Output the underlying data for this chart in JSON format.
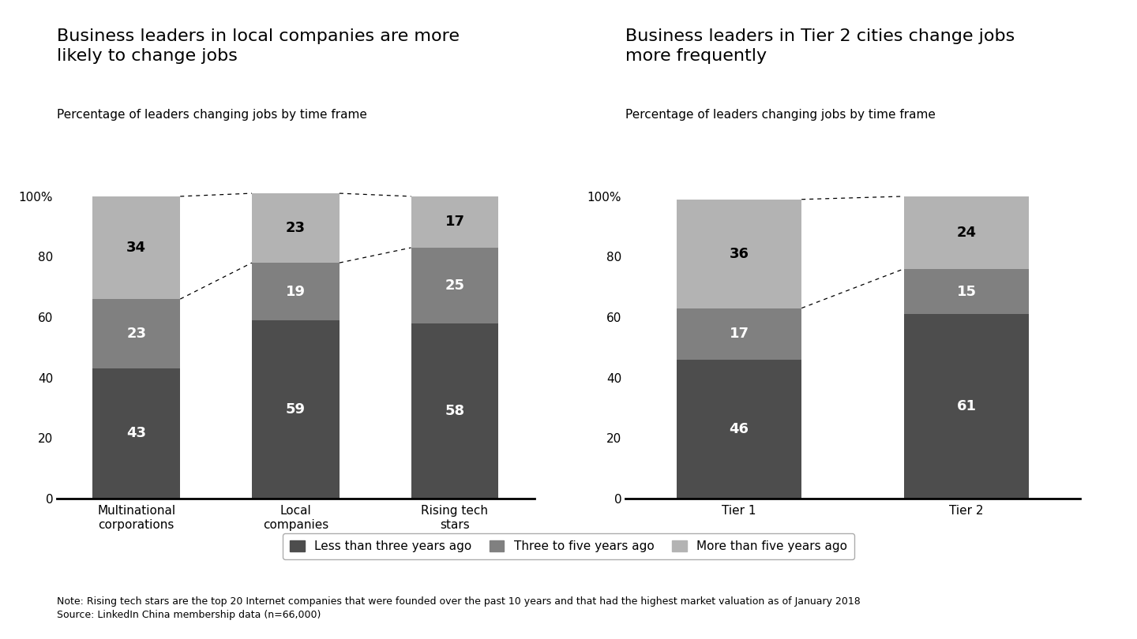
{
  "chart1": {
    "title": "Business leaders in local companies are more\nlikely to change jobs",
    "subtitle": "Percentage of leaders changing jobs by time frame",
    "categories": [
      "Multinational\ncorporations",
      "Local\ncompanies",
      "Rising tech\nstars"
    ],
    "less_than_3": [
      43,
      59,
      58
    ],
    "three_to_5": [
      23,
      19,
      25
    ],
    "more_than_5": [
      34,
      23,
      17
    ]
  },
  "chart2": {
    "title": "Business leaders in Tier 2 cities change jobs\nmore frequently",
    "subtitle": "Percentage of leaders changing jobs by time frame",
    "categories": [
      "Tier 1",
      "Tier 2"
    ],
    "less_than_3": [
      46,
      61
    ],
    "three_to_5": [
      17,
      15
    ],
    "more_than_5": [
      36,
      24
    ]
  },
  "legend_labels": [
    "Less than three years ago",
    "Three to five years ago",
    "More than five years ago"
  ],
  "colors": {
    "less_than_3": "#4d4d4d",
    "three_to_5": "#808080",
    "more_than_5": "#b3b3b3"
  },
  "note": "Note: Rising tech stars are the top 20 Internet companies that were founded over the past 10 years and that had the highest market valuation as of January 2018\nSource: LinkedIn China membership data (n=66,000)"
}
